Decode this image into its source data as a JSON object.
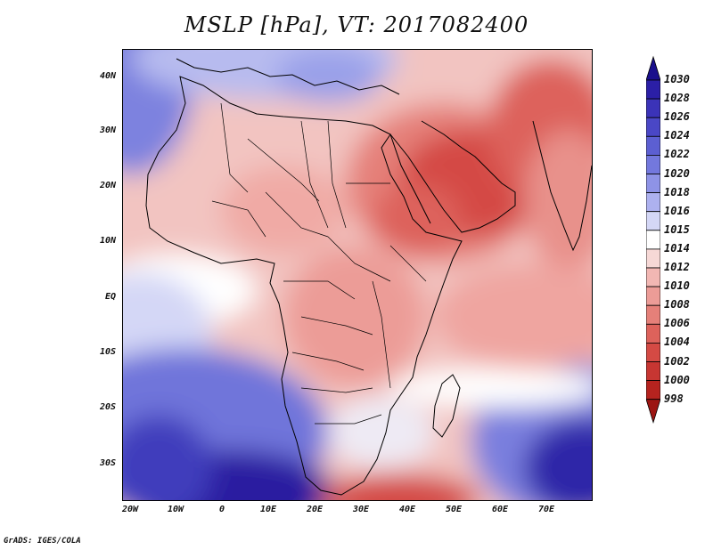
{
  "title": "MSLP [hPa], VT: 2017082400",
  "credit": "GrADS: IGES/COLA",
  "lat_labels": [
    "40N",
    "30N",
    "20N",
    "10N",
    "EQ",
    "10S",
    "20S",
    "30S"
  ],
  "lon_labels": [
    "20W",
    "10W",
    "0",
    "10E",
    "20E",
    "30E",
    "40E",
    "50E",
    "60E",
    "70E"
  ],
  "colorbar": {
    "levels": [
      "1030",
      "1028",
      "1026",
      "1024",
      "1022",
      "1020",
      "1018",
      "1016",
      "1015",
      "1014",
      "1012",
      "1010",
      "1008",
      "1006",
      "1004",
      "1002",
      "1000",
      "998"
    ],
    "colors": [
      "#1a0f8c",
      "#2b1fa6",
      "#3b33b8",
      "#4a47c6",
      "#5c5fd2",
      "#7378dd",
      "#8e93e6",
      "#adb1ef",
      "#d4d7f6",
      "#ffffff",
      "#f6d8d6",
      "#f2b7b3",
      "#ec9c97",
      "#e58079",
      "#dd625b",
      "#d44a44",
      "#c73632",
      "#b5231f",
      "#9c1512"
    ]
  },
  "palette": {
    "deep_blue": "#2a1aa0",
    "blue": "#6f74da",
    "light_blue": "#b9bdf0",
    "white": "#ffffff",
    "light_red": "#f4c8c4",
    "red": "#e88882",
    "deep_red": "#d44a44",
    "land_line": "#000000"
  }
}
